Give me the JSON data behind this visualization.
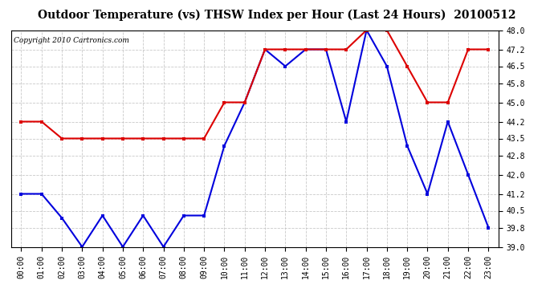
{
  "title": "Outdoor Temperature (vs) THSW Index per Hour (Last 24 Hours)  20100512",
  "copyright": "Copyright 2010 Cartronics.com",
  "hours": [
    "00:00",
    "01:00",
    "02:00",
    "03:00",
    "04:00",
    "05:00",
    "06:00",
    "07:00",
    "08:00",
    "09:00",
    "10:00",
    "11:00",
    "12:00",
    "13:00",
    "14:00",
    "15:00",
    "16:00",
    "17:00",
    "18:00",
    "19:00",
    "20:00",
    "21:00",
    "22:00",
    "23:00"
  ],
  "blue_values": [
    41.2,
    41.2,
    40.2,
    39.0,
    40.3,
    39.0,
    40.3,
    39.0,
    40.3,
    40.3,
    43.2,
    45.0,
    47.2,
    46.5,
    47.2,
    47.2,
    44.2,
    48.0,
    46.5,
    43.2,
    41.2,
    44.2,
    42.0,
    39.8
  ],
  "red_values": [
    44.2,
    44.2,
    43.5,
    43.5,
    43.5,
    43.5,
    43.5,
    43.5,
    43.5,
    43.5,
    45.0,
    45.0,
    47.2,
    47.2,
    47.2,
    47.2,
    47.2,
    48.0,
    48.0,
    46.5,
    45.0,
    45.0,
    47.2,
    47.2
  ],
  "blue_color": "#0000dd",
  "red_color": "#dd0000",
  "ylim": [
    39.0,
    48.0
  ],
  "ytick_values": [
    39.0,
    39.8,
    40.5,
    41.2,
    42.0,
    42.8,
    43.5,
    44.2,
    45.0,
    45.8,
    46.5,
    47.2,
    48.0
  ],
  "bg_color": "#ffffff",
  "plot_bg_color": "#ffffff",
  "grid_color": "#bbbbbb",
  "title_fontsize": 10,
  "copyright_fontsize": 6.5
}
